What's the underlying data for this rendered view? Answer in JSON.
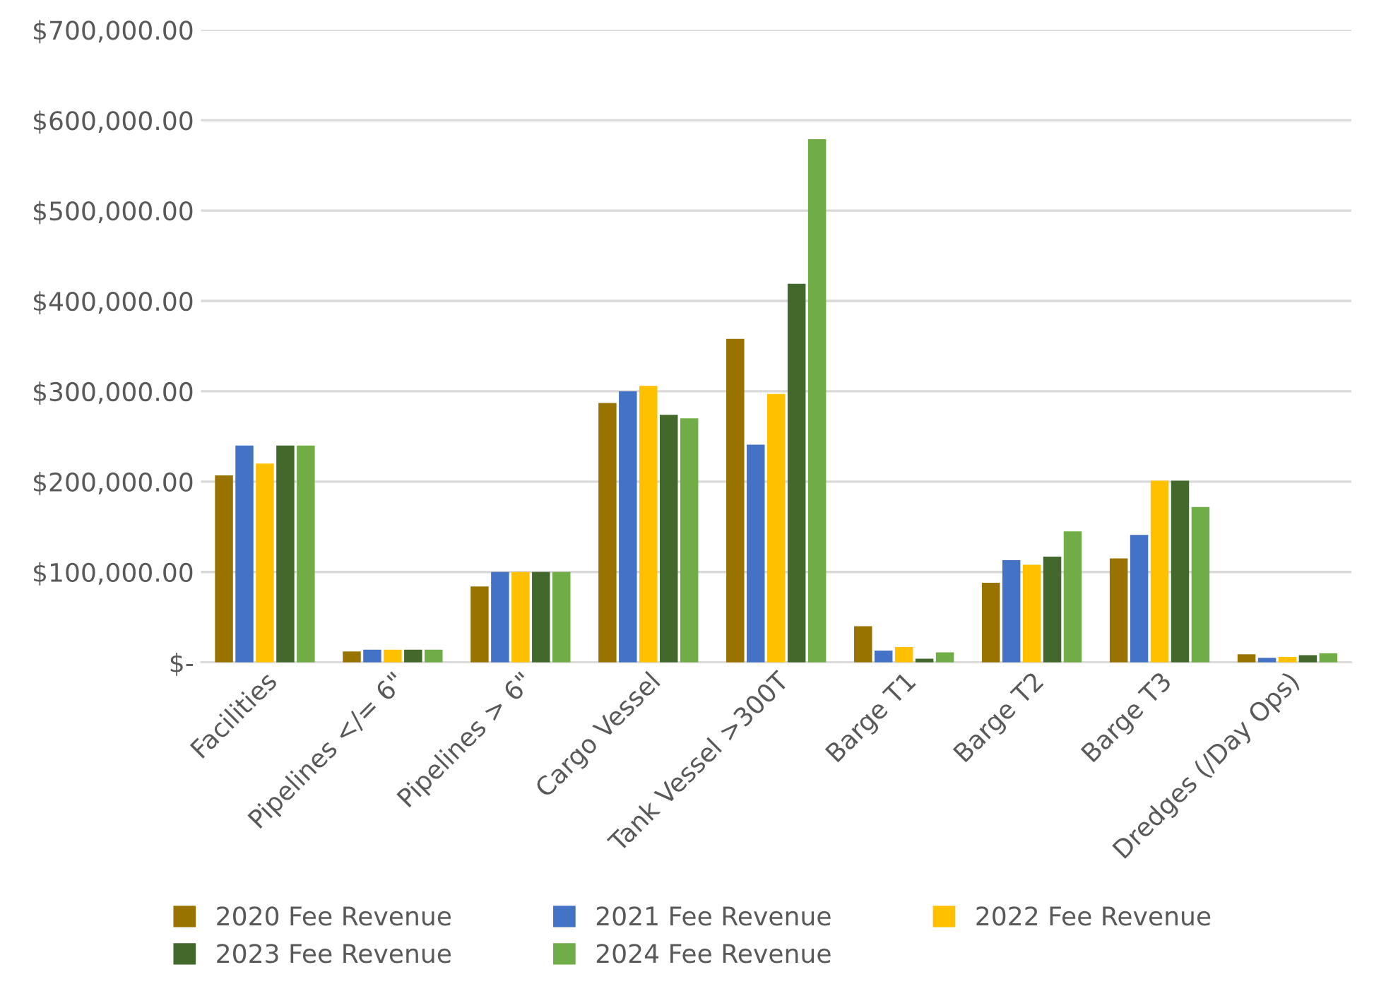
{
  "chart_data": {
    "type": "bar",
    "categories": [
      "Facilities",
      "Pipelines </= 6\"",
      "Pipelines > 6\"",
      "Cargo Vessel",
      "Tank Vessel >300T",
      "Barge T1",
      "Barge T2",
      "Barge T3",
      "Dredges (/Day Ops)"
    ],
    "series": [
      {
        "name": "2020 Fee Revenue",
        "color": "#997300",
        "values": [
          207000,
          12000,
          84000,
          287000,
          358000,
          40000,
          88000,
          115000,
          9000
        ]
      },
      {
        "name": "2021 Fee Revenue",
        "color": "#4472c4",
        "values": [
          240000,
          14000,
          100000,
          300000,
          241000,
          13000,
          113000,
          141000,
          5000
        ]
      },
      {
        "name": "2022 Fee Revenue",
        "color": "#ffc000",
        "values": [
          220000,
          14000,
          100000,
          306000,
          297000,
          17000,
          108000,
          201000,
          6000
        ]
      },
      {
        "name": "2023 Fee Revenue",
        "color": "#43682b",
        "values": [
          240000,
          14000,
          100000,
          274000,
          419000,
          4000,
          117000,
          201000,
          8000
        ]
      },
      {
        "name": "2024 Fee Revenue",
        "color": "#70ad47",
        "values": [
          240000,
          14000,
          100000,
          270000,
          579000,
          11000,
          145000,
          172000,
          10000
        ]
      }
    ],
    "ylim": [
      0,
      700000
    ],
    "yticks": [
      {
        "value": 0,
        "label": "$-"
      },
      {
        "value": 100000,
        "label": "$100,000.00"
      },
      {
        "value": 200000,
        "label": "$200,000.00"
      },
      {
        "value": 300000,
        "label": "$300,000.00"
      },
      {
        "value": 400000,
        "label": "$400,000.00"
      },
      {
        "value": 500000,
        "label": "$500,000.00"
      },
      {
        "value": 600000,
        "label": "$600,000.00"
      },
      {
        "value": 700000,
        "label": "$700,000.00"
      }
    ],
    "grid": "y",
    "legend": "bottom"
  }
}
